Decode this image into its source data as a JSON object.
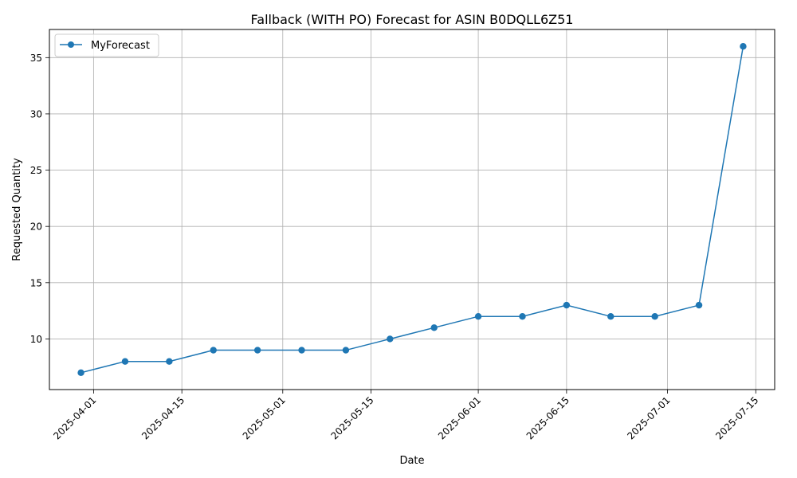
{
  "chart_data": {
    "type": "line",
    "title": "Fallback (WITH PO) Forecast for ASIN B0DQLL6Z51",
    "xlabel": "Date",
    "ylabel": "Requested Quantity",
    "grid": true,
    "legend_position": "upper-left",
    "x_ticks": [
      "2025-04-01",
      "2025-04-15",
      "2025-05-01",
      "2025-05-15",
      "2025-06-01",
      "2025-06-15",
      "2025-07-01",
      "2025-07-15"
    ],
    "y_ticks": [
      10,
      15,
      20,
      25,
      30,
      35
    ],
    "xlim": [
      "2025-03-25",
      "2025-07-18"
    ],
    "ylim": [
      5.5,
      37.5
    ],
    "series": [
      {
        "name": "MyForecast",
        "color": "#1f77b4",
        "marker": "circle",
        "points": [
          {
            "x": "2025-03-30",
            "y": 7
          },
          {
            "x": "2025-04-06",
            "y": 8
          },
          {
            "x": "2025-04-13",
            "y": 8
          },
          {
            "x": "2025-04-20",
            "y": 9
          },
          {
            "x": "2025-04-27",
            "y": 9
          },
          {
            "x": "2025-05-04",
            "y": 9
          },
          {
            "x": "2025-05-11",
            "y": 9
          },
          {
            "x": "2025-05-18",
            "y": 10
          },
          {
            "x": "2025-05-25",
            "y": 11
          },
          {
            "x": "2025-06-01",
            "y": 12
          },
          {
            "x": "2025-06-08",
            "y": 12
          },
          {
            "x": "2025-06-15",
            "y": 13
          },
          {
            "x": "2025-06-22",
            "y": 12
          },
          {
            "x": "2025-06-29",
            "y": 12
          },
          {
            "x": "2025-07-06",
            "y": 13
          },
          {
            "x": "2025-07-13",
            "y": 36
          }
        ]
      }
    ]
  }
}
